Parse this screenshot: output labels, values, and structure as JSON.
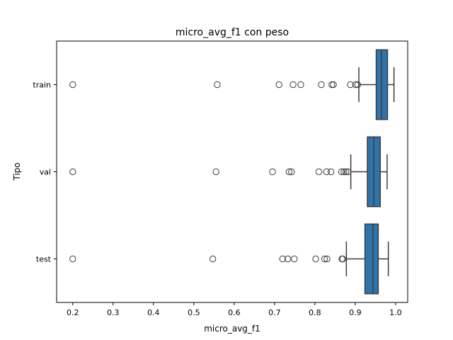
{
  "chart_data": {
    "type": "boxplot",
    "orientation": "horizontal",
    "title": "micro_avg_f1 con peso",
    "xlabel": "micro_avg_f1",
    "ylabel": "Tipo",
    "xlim": [
      0.16,
      1.03
    ],
    "xticks": [
      0.2,
      0.3,
      0.4,
      0.5,
      0.6,
      0.7,
      0.8,
      0.9,
      1.0
    ],
    "xtick_labels": [
      "0.2",
      "0.3",
      "0.4",
      "0.5",
      "0.6",
      "0.7",
      "0.8",
      "0.9",
      "1.0"
    ],
    "grid": false,
    "box_color": "#2f73ad",
    "categories": [
      "train",
      "val",
      "test"
    ],
    "boxes": [
      {
        "category": "train",
        "q1": 0.952,
        "median": 0.965,
        "q3": 0.98,
        "whisker_low": 0.909,
        "whisker_high": 0.996,
        "outliers": [
          0.2,
          0.558,
          0.711,
          0.746,
          0.765,
          0.816,
          0.842,
          0.846,
          0.888,
          0.901,
          0.906
        ]
      },
      {
        "category": "val",
        "q1": 0.93,
        "median": 0.946,
        "q3": 0.962,
        "whisker_low": 0.889,
        "whisker_high": 0.979,
        "outliers": [
          0.2,
          0.555,
          0.695,
          0.736,
          0.742,
          0.81,
          0.829,
          0.84,
          0.866,
          0.872,
          0.877,
          0.882
        ]
      },
      {
        "category": "test",
        "q1": 0.924,
        "median": 0.944,
        "q3": 0.957,
        "whisker_low": 0.878,
        "whisker_high": 0.982,
        "outliers": [
          0.2,
          0.547,
          0.72,
          0.733,
          0.749,
          0.802,
          0.824,
          0.83,
          0.867,
          0.869
        ]
      }
    ]
  }
}
